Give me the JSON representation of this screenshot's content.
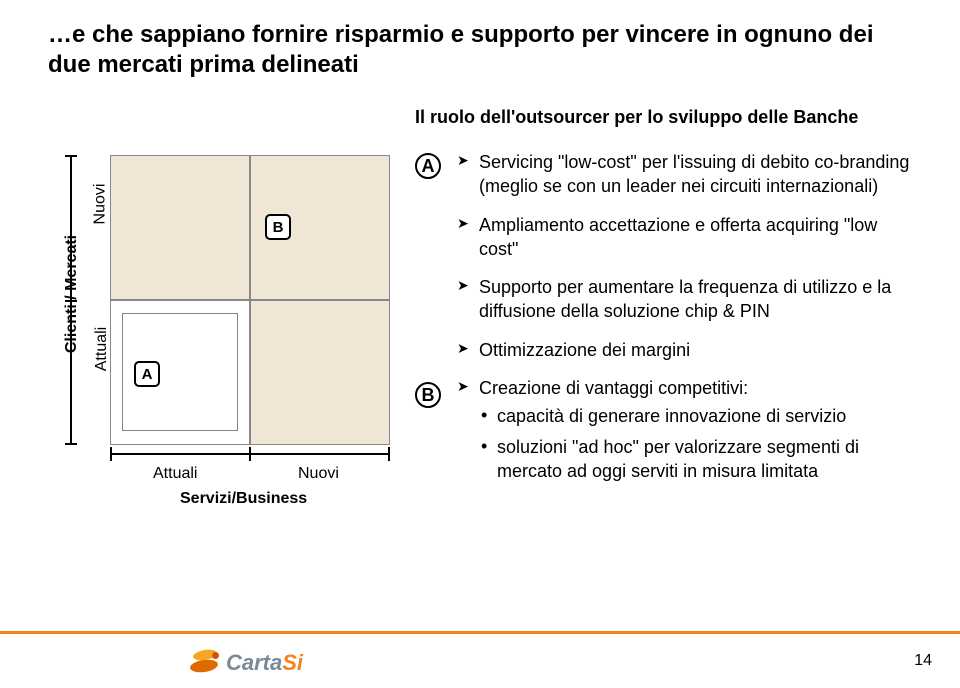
{
  "typography": {
    "title_fontsize": 24,
    "subtitle_fontsize": 18,
    "body_fontsize": 18,
    "logo_fontsize": 22,
    "axis_label_fontsize": 16,
    "tick_label_fontsize": 16,
    "badge_fontsize": 15,
    "pagenum_fontsize": 16
  },
  "colors": {
    "quadrant_fill": "#f0e6d6",
    "quadrant_empty": "#ffffff",
    "cell_border": "#888888",
    "axis": "#000000",
    "accent_orange": "#f58220",
    "logo_gray": "#7a8a99",
    "swirl_light": "#f5a623",
    "swirl_dark": "#e06a00",
    "swirl_dot": "#d35400",
    "bg": "#ffffff",
    "text": "#000000"
  },
  "title": "…e che sappiano fornire risparmio e supporto per vincere in ognuno dei due mercati prima delineati",
  "subtitle": "Il ruolo dell'outsourcer per lo sviluppo delle Banche",
  "matrix": {
    "type": "quadrant",
    "y_axis_title": "Clienti / Mercati",
    "y_labels": [
      "Nuovi",
      "Attuali"
    ],
    "x_axis_title": "Servizi/Business",
    "x_labels": [
      "Attuali",
      "Nuovi"
    ],
    "cells": {
      "top_left": {
        "fill": "#f0e6d6"
      },
      "top_right": {
        "fill": "#f0e6d6",
        "badge": "B"
      },
      "bottom_left": {
        "fill": "#ffffff",
        "badge": "A",
        "inner_box": true
      },
      "bottom_right": {
        "fill": "#f0e6d6"
      }
    },
    "badge_a": "A",
    "badge_b": "B",
    "border_color": "#888888"
  },
  "callouts": {
    "marker_a": "A",
    "marker_b": "B",
    "section_a": [
      "Servicing \"low-cost\" per l'issuing di debito co-branding (meglio se con un leader nei circuiti internazionali)",
      "Ampliamento accettazione e offerta acquiring \"low cost\"",
      "Supporto per aumentare la frequenza di utilizzo e la diffusione della soluzione chip & PIN"
    ],
    "section_b_lead": "Ottimizzazione dei margini",
    "section_b_lead2": "Creazione di vantaggi competitivi:",
    "section_b_sub": [
      "capacità di generare innovazione di servizio",
      "soluzioni \"ad hoc\" per valorizzare segmenti di mercato ad oggi serviti in misura limitata"
    ]
  },
  "logo": {
    "part1": "Carta",
    "part2": "Si"
  },
  "page_number": "14"
}
